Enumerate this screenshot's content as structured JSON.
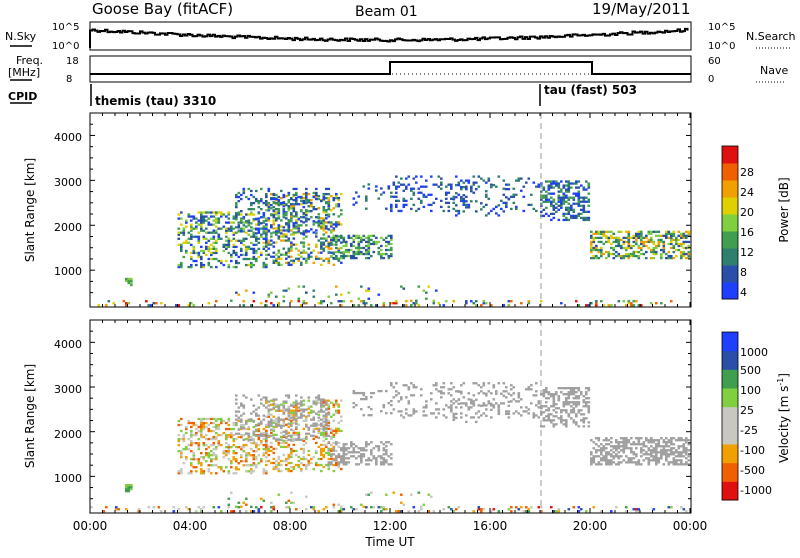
{
  "header": {
    "station": "Goose Bay (fitACF)",
    "beam": "Beam 01",
    "date": "19/May/2011"
  },
  "summary": {
    "nsky_label": "N.Sky",
    "nsearch_label": "N.Search",
    "nsky_ticks": [
      "10^5",
      "10^0"
    ],
    "nsearch_ticks": [
      "10^5",
      "10^0"
    ],
    "freq_label_1": "Freq.",
    "freq_label_2": "[MHz]",
    "freq_ticks": [
      "18",
      "8"
    ],
    "nave_label": "Nave",
    "nave_ticks": [
      "60",
      "0"
    ],
    "cpid_label": "CPID",
    "cpid_segments": [
      {
        "label": "themis (tau) 3310",
        "start_hour": 0
      },
      {
        "label": "tau (fast) 503",
        "start_hour": 18
      }
    ]
  },
  "colors": {
    "power": [
      "#1f3fff",
      "#2a4fa8",
      "#2f7f6f",
      "#3f9f4f",
      "#7fcf3f",
      "#dfd000",
      "#f0a000",
      "#f06000",
      "#e01010"
    ],
    "velocity": [
      "#e01010",
      "#f06000",
      "#f0a000",
      "#c8c8c0",
      "#c8c8c0",
      "#7fcf3f",
      "#3f9f4f",
      "#2a4fa8",
      "#1f3fff"
    ],
    "ground": "#a0a0a0"
  },
  "chart_data": [
    {
      "type": "heatmap",
      "ylabel": "Slant Range [km]",
      "xlim_hours": [
        0,
        24
      ],
      "ylim": [
        180,
        4500
      ],
      "yticks": [
        "1000",
        "2000",
        "3000",
        "4000"
      ],
      "colorbar_label": "Power [dB]",
      "colorbar_ticks": [
        "28",
        "24",
        "20",
        "16",
        "12",
        "8",
        "4"
      ],
      "scatter_regions": [
        {
          "x": [
            3.5,
            12.0
          ],
          "y": [
            1050,
            2300
          ],
          "values": "0-26 dB, mostly 4-12"
        },
        {
          "x": [
            5.5,
            10.0
          ],
          "y": [
            1800,
            2800
          ],
          "values": "4-12 dB"
        },
        {
          "x": [
            12.0,
            18.0
          ],
          "y": [
            2200,
            3100
          ],
          "values": "4-8 dB"
        },
        {
          "x": [
            18.0,
            20.0
          ],
          "y": [
            2100,
            3000
          ],
          "values": "4-12 dB"
        },
        {
          "x": [
            20.0,
            24.0
          ],
          "y": [
            1200,
            1900
          ],
          "values": "8-20 dB"
        },
        {
          "x": [
            0,
            24.0
          ],
          "y": [
            200,
            700
          ],
          "values": "scattered near-range returns"
        }
      ]
    },
    {
      "type": "heatmap",
      "xlabel": "Time UT",
      "ylabel": "Slant Range [km]",
      "xlim_hours": [
        0,
        24
      ],
      "ylim": [
        180,
        4500
      ],
      "xticks": [
        "00:00",
        "04:00",
        "08:00",
        "12:00",
        "16:00",
        "20:00",
        "00:00"
      ],
      "yticks": [
        "1000",
        "2000",
        "3000",
        "4000"
      ],
      "colorbar_label": "Velocity [m s^-1]",
      "colorbar_ticks": [
        "1000",
        "500",
        "100",
        "25",
        "-25",
        "-100",
        "-500",
        "-1000"
      ],
      "scatter_regions": [
        {
          "x": [
            3.5,
            10.0
          ],
          "y": [
            1050,
            2300
          ],
          "values": "-500 to 100 m/s, orange and green"
        },
        {
          "x": [
            6.0,
            12.0
          ],
          "y": [
            1200,
            2800
          ],
          "values": "ground scatter (grey)"
        },
        {
          "x": [
            12.0,
            20.0
          ],
          "y": [
            2200,
            3100
          ],
          "values": "ground scatter (grey)"
        },
        {
          "x": [
            20.0,
            24.0
          ],
          "y": [
            1200,
            1800
          ],
          "values": "ground scatter (grey)"
        }
      ]
    }
  ],
  "axis": {
    "time_label": "Time UT",
    "time_ticks": [
      "00:00",
      "04:00",
      "08:00",
      "12:00",
      "16:00",
      "20:00",
      "00:00"
    ],
    "range_label": "Slant Range [km]",
    "range_ticks": [
      "1000",
      "2000",
      "3000",
      "4000"
    ]
  },
  "power": {
    "label": "Power [dB]",
    "ticks": [
      "28",
      "24",
      "20",
      "16",
      "12",
      "8",
      "4"
    ]
  },
  "velocity": {
    "label_main": "Velocity [m s",
    "label_sup": "-1",
    "label_end": "]",
    "ticks": [
      "1000",
      "500",
      "100",
      "25",
      "-25",
      "-100",
      "-500",
      "-1000"
    ]
  }
}
